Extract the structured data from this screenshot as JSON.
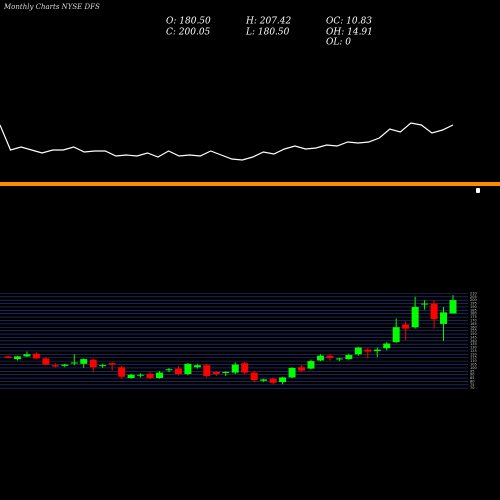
{
  "chart_data": [
    {
      "type": "line",
      "color": "#ffffff",
      "ylim": [
        30,
        90
      ],
      "values": [
        75,
        50,
        53,
        50,
        47,
        50,
        50,
        53,
        48,
        49,
        49,
        44,
        45,
        44,
        47,
        43,
        49,
        44,
        45,
        44,
        49,
        45,
        41,
        40,
        43,
        48,
        46,
        51,
        54,
        51,
        52,
        55,
        54,
        58,
        57,
        58,
        62,
        71,
        68,
        77,
        75,
        67,
        70,
        75
      ]
    },
    {
      "type": "candlestick",
      "title": "Monthly Charts NYSE DFS",
      "summary": [
        "O: 180.50",
        "H: 207.42",
        "OC: 10.83",
        "C: 200.05",
        "L: 180.50",
        "OH: 14.91",
        "OL: 0"
      ],
      "up_color": "#00ff00",
      "down_color": "#ff0000",
      "grid": true,
      "ylim": [
        60,
        215
      ],
      "yticks": [
        70,
        75,
        80,
        85,
        90,
        95,
        100,
        105,
        110,
        115,
        120,
        125,
        130,
        135,
        140,
        145,
        150,
        155,
        160,
        165,
        170,
        175,
        180,
        185,
        190,
        195,
        200,
        205,
        210
      ],
      "open": [
        117,
        113,
        117,
        121,
        114,
        104,
        103,
        107,
        106,
        112,
        103,
        107,
        101,
        85,
        89,
        91,
        85,
        97,
        99,
        91,
        101,
        104,
        94,
        93,
        93,
        107,
        93,
        81,
        84,
        79,
        86,
        101,
        99,
        111,
        118,
        113,
        113,
        120,
        127,
        125,
        129,
        138,
        164,
        160,
        194,
        195,
        165,
        180.5
      ],
      "high": [
        118,
        118,
        124,
        123,
        116,
        107,
        106,
        120,
        114,
        114,
        106,
        109,
        103,
        91,
        92,
        94,
        95,
        100,
        103,
        107,
        106,
        106,
        95,
        95,
        108,
        109,
        96,
        84,
        86,
        87,
        101,
        104,
        112,
        120,
        121,
        115,
        121,
        131,
        129,
        130,
        138,
        173,
        169,
        205,
        200,
        200,
        190,
        207.42
      ],
      "low": [
        114,
        111,
        116,
        113,
        104,
        101,
        101,
        104,
        100,
        94,
        100,
        96,
        84,
        84,
        86,
        83,
        84,
        94,
        89,
        89,
        99,
        86,
        88,
        88,
        91,
        91,
        79,
        79,
        76,
        76,
        85,
        94,
        98,
        110,
        111,
        110,
        112,
        118,
        114,
        116,
        126,
        137,
        141,
        158,
        186,
        158,
        140,
        180.5
      ],
      "close": [
        115,
        117,
        120,
        114,
        105,
        102,
        105,
        108,
        113,
        101,
        104,
        105,
        87,
        90,
        90,
        85,
        93,
        98,
        91,
        106,
        104,
        88,
        91,
        94,
        105,
        93,
        82,
        83,
        78,
        86,
        100,
        96,
        110,
        118,
        115,
        114,
        119,
        130,
        124,
        127,
        136,
        160,
        158,
        190,
        195,
        172,
        182,
        200.05
      ]
    }
  ]
}
